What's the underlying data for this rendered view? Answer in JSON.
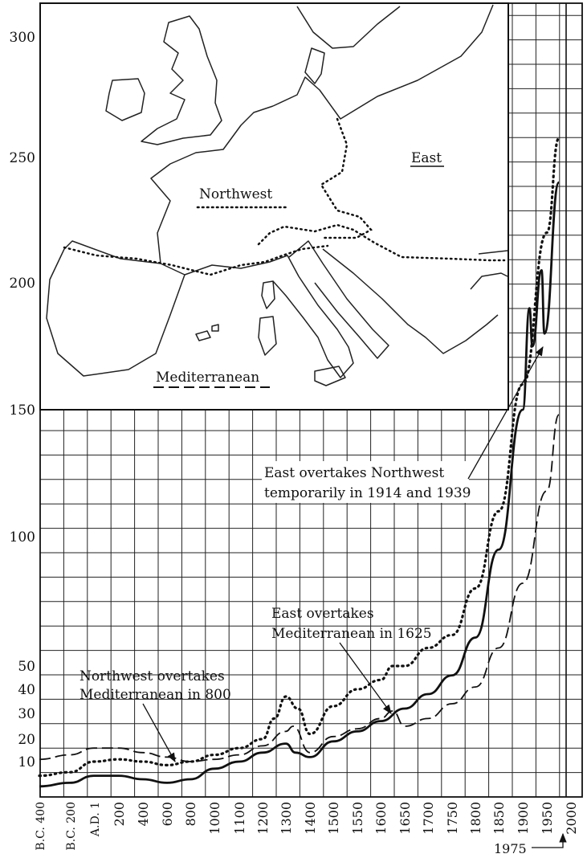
{
  "chart_data": {
    "type": "line",
    "y_ticks": [
      10,
      20,
      30,
      40,
      50,
      100,
      150,
      200,
      250,
      300
    ],
    "x_ticks": [
      "B.C. 400",
      "B.C. 200",
      "A.D. 1",
      "200",
      "400",
      "600",
      "800",
      "1000",
      "1100",
      "1200",
      "1300",
      "1400",
      "1500",
      "1550",
      "1600",
      "1650",
      "1700",
      "1750",
      "1800",
      "1850",
      "1900",
      "1950",
      "2000"
    ],
    "x_ticks_rotated": [
      "B.C. 400",
      "B.C. 200",
      "A.D. 1"
    ],
    "marker_label": "1975",
    "map_legend": [
      {
        "name": "Northwest",
        "style": "dotted"
      },
      {
        "name": "East",
        "style": "solid"
      },
      {
        "name": "Mediterranean",
        "style": "dashed"
      }
    ],
    "annotations": [
      {
        "lines": [
          "Northwest overtakes",
          "Mediterranean in 800"
        ]
      },
      {
        "lines": [
          "East overtakes",
          "Mediterranean in 1625"
        ]
      },
      {
        "lines": [
          "East overtakes Northwest",
          "temporarily in 1914 and 1939"
        ]
      }
    ],
    "grid": true,
    "series": [
      {
        "style": "solid",
        "x": [
          "B.C. 400",
          "B.C. 200",
          "A.D. 1",
          "200",
          "400",
          "600",
          "800",
          "1000",
          "1100",
          "1200",
          "1300",
          "1340",
          "1400",
          "1500",
          "1550",
          "1600",
          "1650",
          "1700",
          "1750",
          "1800",
          "1850",
          "1900",
          "1914",
          "1920",
          "1939",
          "1945",
          "1975"
        ],
        "y": [
          3,
          4,
          6,
          6,
          5,
          4,
          5,
          8,
          10,
          14,
          18,
          14,
          12,
          19,
          23,
          27,
          32,
          38,
          46,
          61,
          95,
          150,
          190,
          175,
          205,
          180,
          240
        ]
      },
      {
        "style": "dotted",
        "x": [
          "B.C. 400",
          "B.C. 200",
          "A.D. 1",
          "200",
          "400",
          "600",
          "800",
          "1000",
          "1100",
          "1200",
          "1250",
          "1300",
          "1350",
          "1400",
          "1500",
          "1550",
          "1600",
          "1625",
          "1650",
          "1700",
          "1750",
          "1800",
          "1850",
          "1900",
          "1950",
          "1975"
        ],
        "y": [
          6,
          7,
          10,
          11,
          10,
          9,
          10,
          13,
          16,
          20,
          28,
          37,
          32,
          22,
          33,
          40,
          44,
          50,
          50,
          57,
          62,
          80,
          110,
          160,
          220,
          258
        ]
      },
      {
        "style": "dashed",
        "x": [
          "B.C. 400",
          "B.C. 200",
          "A.D. 1",
          "200",
          "400",
          "600",
          "800",
          "1000",
          "1100",
          "1200",
          "1300",
          "1330",
          "1400",
          "1500",
          "1550",
          "1600",
          "1625",
          "1650",
          "1700",
          "1750",
          "1800",
          "1850",
          "1900",
          "1950",
          "1975"
        ],
        "y": [
          11,
          13,
          16,
          16,
          14,
          12,
          10,
          11,
          13,
          17,
          23,
          25,
          14,
          21,
          24,
          28,
          31,
          25,
          28,
          34,
          41,
          57,
          82,
          118,
          148
        ]
      }
    ]
  }
}
